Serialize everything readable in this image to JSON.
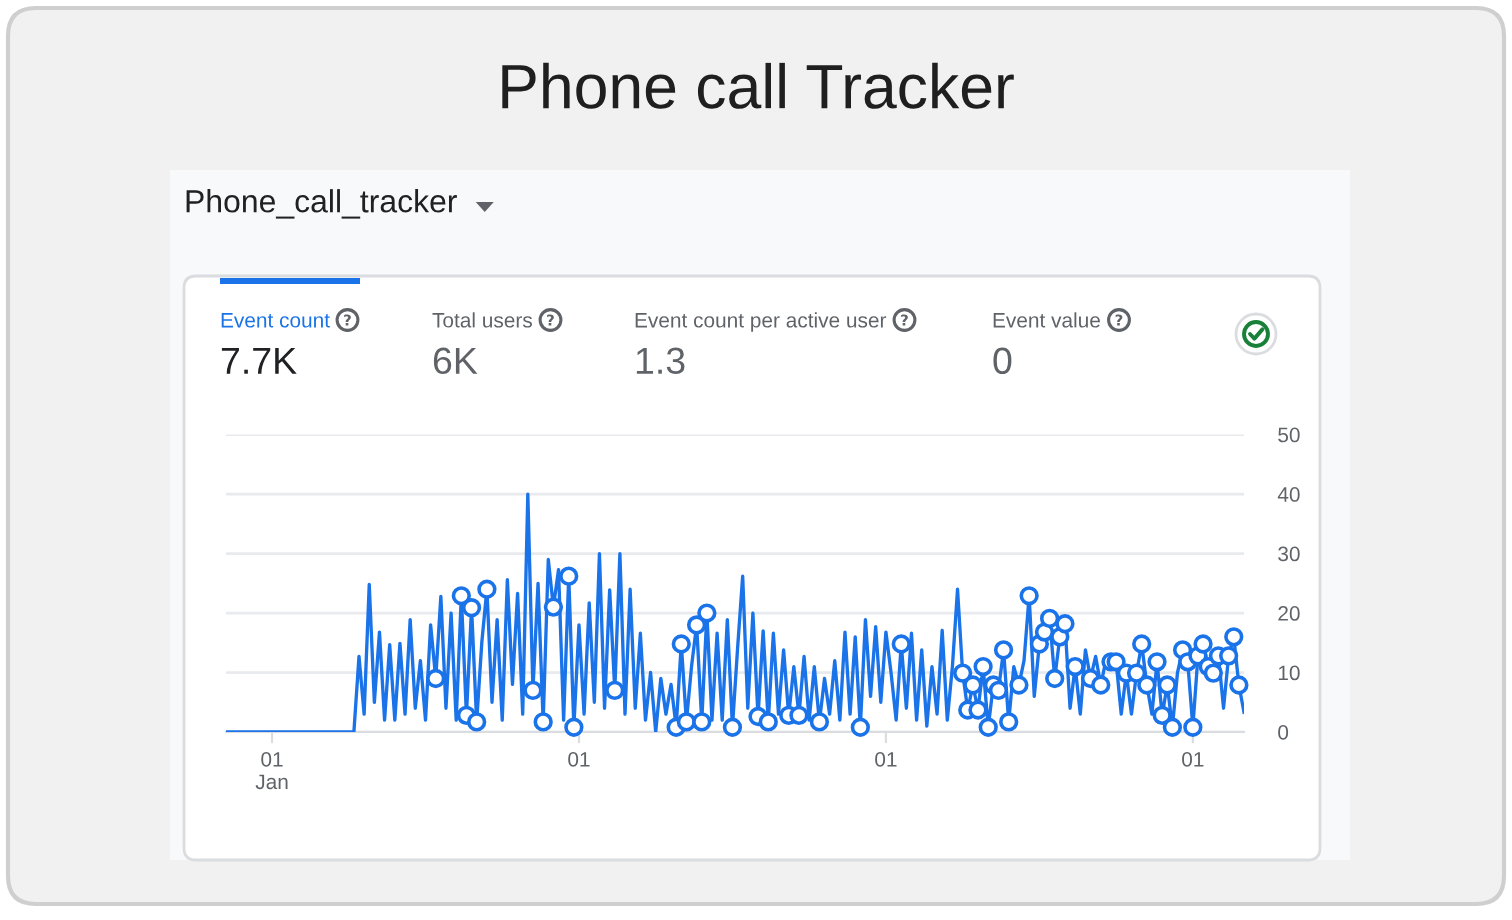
{
  "chart_data": {
    "type": "line",
    "title": "Phone call Tracker",
    "subtitle": "Phone_call_tracker",
    "annotations": [
      "Event count",
      "7.7K",
      "Total users",
      "6K",
      "Event count per active user",
      "1.3",
      "Event value",
      "0"
    ],
    "categories": [
      null,
      null,
      null,
      null,
      null,
      null,
      null,
      null,
      null,
      "01\nJan",
      null,
      null,
      null,
      null,
      null,
      null,
      null,
      null,
      null,
      null,
      null,
      null,
      null,
      null,
      null,
      null,
      null,
      null,
      null,
      null,
      null,
      null,
      null,
      null,
      null,
      null,
      null,
      null,
      null,
      null,
      null,
      null,
      null,
      null,
      null,
      null,
      null,
      null,
      null,
      null,
      null,
      null,
      null,
      null,
      null,
      null,
      null,
      null,
      null,
      null,
      null,
      null,
      null,
      null,
      null,
      null,
      null,
      null,
      null,
      "01",
      null,
      null,
      null,
      null,
      null,
      null,
      null,
      null,
      null,
      null,
      null,
      null,
      null,
      null,
      null,
      null,
      null,
      null,
      null,
      null,
      null,
      null,
      null,
      null,
      null,
      null,
      null,
      null,
      null,
      null,
      null,
      null,
      null,
      null,
      null,
      null,
      null,
      null,
      null,
      null,
      null,
      null,
      null,
      null,
      null,
      null,
      null,
      null,
      null,
      null,
      null,
      null,
      null,
      null,
      null,
      null,
      null,
      null,
      null,
      "01",
      null,
      null,
      null,
      null,
      null,
      null,
      null,
      null,
      null,
      null,
      null,
      null,
      null,
      null,
      null,
      null,
      null,
      null,
      null,
      null,
      null,
      null,
      null,
      null,
      null,
      null,
      null,
      null,
      null,
      null,
      null,
      null,
      null,
      null,
      null,
      null,
      null,
      null,
      null,
      null,
      null,
      null,
      null,
      null,
      null,
      null,
      null,
      null,
      null,
      null,
      null,
      null,
      null,
      null,
      null,
      null,
      null,
      null,
      null,
      "01",
      null,
      null,
      null,
      null,
      null,
      null,
      null,
      null,
      null,
      null
    ],
    "ylim": [
      0,
      50
    ],
    "yticks": [
      0,
      10,
      20,
      30,
      40,
      50
    ],
    "grid": "y",
    "series": [
      {
        "color": "#1a73e8",
        "values": [
          0,
          0,
          0,
          0,
          0,
          0,
          0,
          0,
          0,
          0,
          0,
          0,
          0,
          0,
          0,
          0,
          0,
          0,
          0,
          0,
          0,
          0,
          0,
          0,
          0,
          0,
          12.7,
          3,
          24.8,
          5,
          16.8,
          2,
          14.7,
          2,
          14.9,
          3,
          18.9,
          4,
          12,
          2,
          18,
          9,
          22.8,
          4,
          20,
          2,
          22.9,
          2.8,
          20.9,
          1.7,
          15,
          24,
          5,
          18.9,
          2,
          25.6,
          8,
          23.3,
          3,
          40,
          7,
          25,
          1.7,
          29,
          21,
          27.3,
          2,
          26.2,
          0.8,
          18,
          3,
          21.7,
          5,
          30,
          4,
          23.9,
          7,
          30,
          3,
          24,
          4,
          16.6,
          2,
          10,
          0,
          9,
          3,
          8,
          0.8,
          14.8,
          1.7,
          11,
          18,
          1.7,
          20,
          2,
          16.6,
          2,
          18.9,
          0.8,
          14,
          26.2,
          4,
          20,
          2.6,
          17,
          1.7,
          16.6,
          3,
          13.8,
          2.8,
          11,
          2.8,
          12.7,
          2,
          11,
          1.7,
          9,
          3,
          12,
          2,
          16.8,
          3,
          16,
          0.8,
          18.9,
          6,
          17.7,
          5,
          16.8,
          10,
          2,
          14.8,
          4,
          16.6,
          2,
          13.8,
          1,
          11,
          3,
          17.1,
          2,
          11,
          24,
          9.9,
          3.7,
          7.9,
          3.7,
          11,
          0.8,
          7.9,
          7,
          13.8,
          1.7,
          11,
          7.9,
          12,
          22.9,
          6,
          14.8,
          16.8,
          19.1,
          9,
          16,
          18.2,
          4,
          11,
          3,
          13.8,
          9,
          12.7,
          7.9,
          12,
          11.8,
          11.8,
          3,
          9.9,
          3,
          9.9,
          14.8,
          7.9,
          3,
          11.8,
          2.8,
          7.9,
          0.8,
          10,
          13.8,
          11.8,
          0.8,
          12.8,
          14.8,
          11,
          9.9,
          12.8,
          4,
          12.8,
          16,
          7.9,
          3.3
        ]
      },
      {
        "type": "scatter",
        "color": "#1a73e8",
        "marker": "circle",
        "values": [
          null,
          null,
          null,
          null,
          null,
          null,
          null,
          null,
          null,
          null,
          null,
          null,
          null,
          null,
          null,
          null,
          null,
          null,
          null,
          null,
          null,
          null,
          null,
          null,
          null,
          null,
          null,
          null,
          null,
          null,
          null,
          null,
          null,
          null,
          null,
          null,
          null,
          null,
          null,
          null,
          null,
          9,
          null,
          null,
          null,
          null,
          22.9,
          2.8,
          20.9,
          1.7,
          null,
          24,
          null,
          null,
          null,
          null,
          null,
          null,
          null,
          null,
          7,
          null,
          1.7,
          null,
          21,
          null,
          null,
          26.2,
          0.8,
          null,
          null,
          null,
          null,
          null,
          null,
          null,
          7,
          null,
          null,
          null,
          null,
          null,
          null,
          null,
          null,
          null,
          null,
          null,
          0.8,
          14.8,
          1.7,
          null,
          18,
          1.7,
          20,
          null,
          null,
          null,
          null,
          0.8,
          null,
          null,
          null,
          null,
          2.6,
          null,
          1.7,
          null,
          null,
          null,
          2.8,
          null,
          2.8,
          null,
          null,
          null,
          1.7,
          null,
          null,
          null,
          null,
          null,
          null,
          null,
          0.8,
          null,
          null,
          null,
          null,
          null,
          null,
          null,
          14.8,
          null,
          null,
          null,
          null,
          null,
          null,
          null,
          null,
          null,
          null,
          null,
          9.9,
          3.7,
          7.9,
          3.7,
          11,
          0.8,
          7.9,
          7,
          13.8,
          1.7,
          null,
          7.9,
          null,
          22.9,
          null,
          14.8,
          16.8,
          19.1,
          9,
          16,
          18.2,
          null,
          11,
          null,
          null,
          9,
          null,
          7.9,
          null,
          11.8,
          11.8,
          null,
          9.9,
          null,
          9.9,
          14.8,
          7.9,
          null,
          11.8,
          2.8,
          7.9,
          0.8,
          null,
          13.8,
          11.8,
          0.8,
          12.8,
          14.8,
          11,
          9.9,
          12.8,
          null,
          12.8,
          16,
          7.9,
          null
        ]
      }
    ]
  }
}
